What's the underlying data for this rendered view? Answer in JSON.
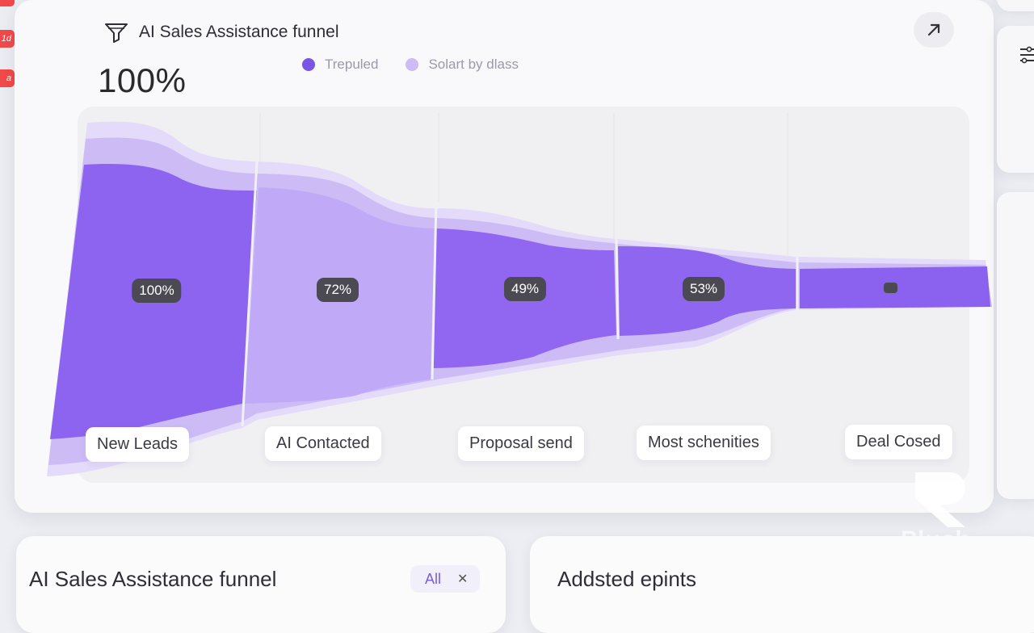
{
  "badges": [
    "",
    "1d",
    "a"
  ],
  "header": {
    "title": "AI Sales Assistance funnel",
    "title_icon": "funnel-icon",
    "expand_icon": "arrow-up-right-icon",
    "big_percentage": "100%"
  },
  "legend": [
    {
      "label": "Trepuled",
      "color": "#7a55e3"
    },
    {
      "label": "Solart by dlass",
      "color": "#cbbcf5"
    }
  ],
  "chart_data": {
    "type": "funnel",
    "stages": [
      "New Leads",
      "AI Contacted",
      "Proposal send",
      "Most schenities",
      "Deal Cosed"
    ],
    "values_label": [
      "100%",
      "72%",
      "49%",
      "53%",
      ""
    ],
    "colors": {
      "primary": "#8a63ee",
      "light": "#c6b3f6",
      "halo": "#e2d7fa"
    }
  },
  "bottom": {
    "left_title": "AI Sales Assistance funnel",
    "chip_label": "All",
    "right_title": "Addsted epints"
  },
  "watermark": "Pluch"
}
